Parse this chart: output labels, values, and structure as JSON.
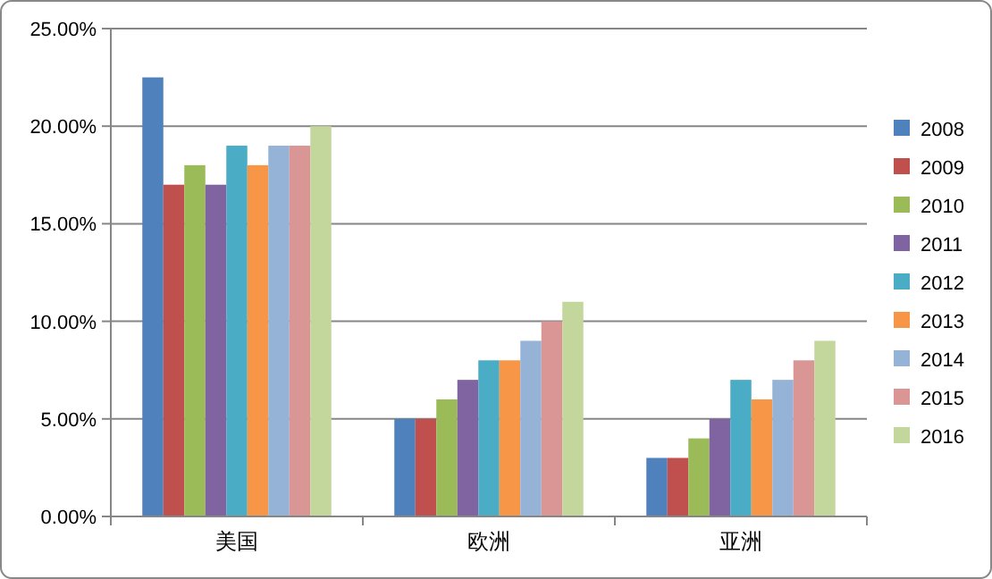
{
  "chart_data": {
    "type": "bar",
    "categories": [
      "美国",
      "欧洲",
      "亚洲"
    ],
    "series": [
      {
        "name": "2008",
        "color": "#4f81bd",
        "values": [
          22.5,
          5,
          3
        ]
      },
      {
        "name": "2009",
        "color": "#c0504d",
        "values": [
          17,
          5,
          3
        ]
      },
      {
        "name": "2010",
        "color": "#9bbb59",
        "values": [
          18,
          6,
          4
        ]
      },
      {
        "name": "2011",
        "color": "#8064a2",
        "values": [
          17,
          7,
          5
        ]
      },
      {
        "name": "2012",
        "color": "#4bacc6",
        "values": [
          19,
          8,
          7
        ]
      },
      {
        "name": "2013",
        "color": "#f79646",
        "values": [
          18,
          8,
          6
        ]
      },
      {
        "name": "2014",
        "color": "#95b3d7",
        "values": [
          19,
          9,
          7
        ]
      },
      {
        "name": "2015",
        "color": "#d99694",
        "values": [
          19,
          10,
          8
        ]
      },
      {
        "name": "2016",
        "color": "#c3d69b",
        "values": [
          20,
          11,
          9
        ]
      }
    ],
    "ylim": [
      0,
      25
    ],
    "yticks": [
      {
        "value": 0,
        "label": "0.00%"
      },
      {
        "value": 5,
        "label": "5.00%"
      },
      {
        "value": 10,
        "label": "10.00%"
      },
      {
        "value": 15,
        "label": "15.00%"
      },
      {
        "value": 20,
        "label": "20.00%"
      },
      {
        "value": 25,
        "label": "25.00%"
      }
    ],
    "grid": "y",
    "legend": "right"
  }
}
